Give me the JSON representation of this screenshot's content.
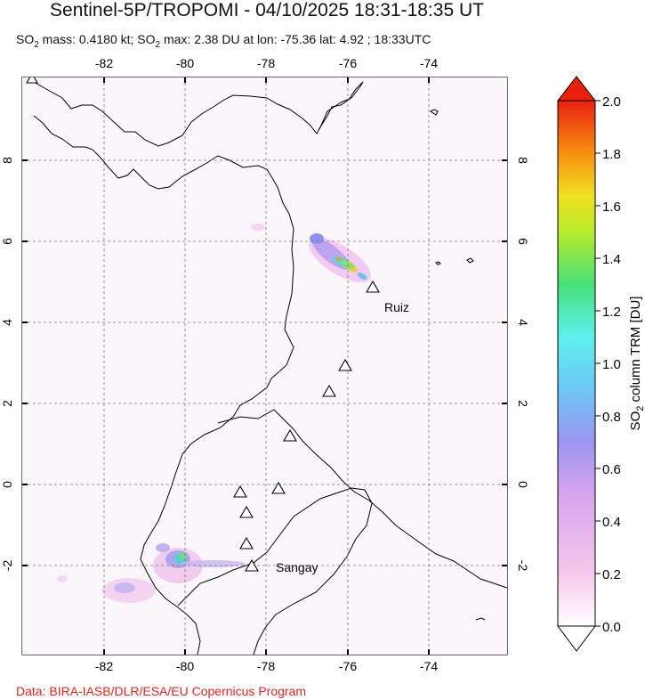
{
  "header": {
    "title": "Sentinel-5P/TROPOMI - 04/10/2025 18:31-18:35 UT",
    "subtitle_parts": {
      "so2_a": "SO",
      "sub_a": "2",
      "mass": " mass: 0.4180 kt; SO",
      "sub_b": "2",
      "rest": " max: 2.38 DU at lon: -75.36 lat: 4.92 ; 18:33UTC"
    }
  },
  "map": {
    "lon_ticks": [
      "-82",
      "-80",
      "-78",
      "-76",
      "-74"
    ],
    "lat_ticks": [
      "8",
      "6",
      "4",
      "2",
      "0",
      "-2"
    ],
    "volcano_labels": {
      "ruiz": "Ruiz",
      "sangay": "Sangay"
    }
  },
  "colorbar": {
    "ticks": [
      "2.0",
      "1.8",
      "1.6",
      "1.4",
      "1.2",
      "1.0",
      "0.8",
      "0.6",
      "0.4",
      "0.2",
      "0.0"
    ],
    "label_parts": {
      "pre": "SO",
      "sub": "2",
      "post": " column TRM [DU]"
    },
    "min": 0.0,
    "max": 2.0
  },
  "footer": {
    "credit": "Data: BIRA-IASB/DLR/ESA/EU Copernicus Program",
    "credit_color": "#e8201c"
  }
}
